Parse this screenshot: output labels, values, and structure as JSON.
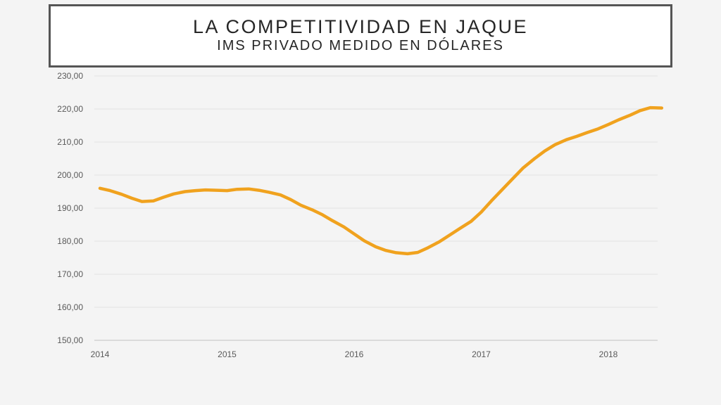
{
  "slide": {
    "title": "LA COMPETITIVIDAD EN JAQUE",
    "subtitle": "IMS PRIVADO MEDIDO EN DÓLARES"
  },
  "chart_data": {
    "type": "line",
    "title": "",
    "xlabel": "",
    "ylabel": "",
    "ylim": [
      150,
      230
    ],
    "y_ticks": [
      150,
      160,
      170,
      180,
      190,
      200,
      210,
      220,
      230
    ],
    "y_tick_labels": [
      "150,00",
      "160,00",
      "170,00",
      "180,00",
      "190,00",
      "200,00",
      "210,00",
      "220,00",
      "230,00"
    ],
    "x_ticks": [
      2014,
      2015,
      2016,
      2017,
      2018
    ],
    "x_tick_labels": [
      "2014",
      "2015",
      "2016",
      "2017",
      "2018"
    ],
    "xlim": [
      2014,
      2018.44
    ],
    "grid": "horizontal",
    "legend": "none",
    "colors": {
      "line": "#f0a21e",
      "grid": "#e2e2e2",
      "axis": "#bfbfbf"
    },
    "series": [
      {
        "x": [
          2014.0,
          2014.08,
          2014.17,
          2014.25,
          2014.33,
          2014.42,
          2014.5,
          2014.58,
          2014.67,
          2014.75,
          2014.83,
          2014.92,
          2015.0,
          2015.08,
          2015.17,
          2015.25,
          2015.33,
          2015.42,
          2015.5,
          2015.58,
          2015.67,
          2015.75,
          2015.83,
          2015.92,
          2016.0,
          2016.08,
          2016.17,
          2016.25,
          2016.33,
          2016.42,
          2016.5,
          2016.58,
          2016.67,
          2016.75,
          2016.83,
          2016.92,
          2017.0,
          2017.08,
          2017.17,
          2017.25,
          2017.33,
          2017.42,
          2017.5,
          2017.58,
          2017.67,
          2017.75,
          2017.83,
          2017.92,
          2018.0,
          2018.08,
          2018.17,
          2018.25,
          2018.33,
          2018.42
        ],
        "values": [
          196.0,
          195.3,
          194.2,
          193.0,
          192.0,
          192.2,
          193.3,
          194.3,
          195.0,
          195.3,
          195.5,
          195.4,
          195.3,
          195.7,
          195.8,
          195.4,
          194.8,
          194.0,
          192.6,
          190.9,
          189.5,
          188.0,
          186.2,
          184.3,
          182.2,
          180.1,
          178.3,
          177.2,
          176.5,
          176.2,
          176.6,
          178.0,
          179.8,
          181.8,
          183.8,
          186.0,
          188.8,
          192.2,
          195.8,
          199.0,
          202.2,
          205.0,
          207.3,
          209.2,
          210.7,
          211.7,
          212.8,
          214.0,
          215.3,
          216.7,
          218.1,
          219.5,
          220.4,
          220.3
        ]
      }
    ]
  }
}
